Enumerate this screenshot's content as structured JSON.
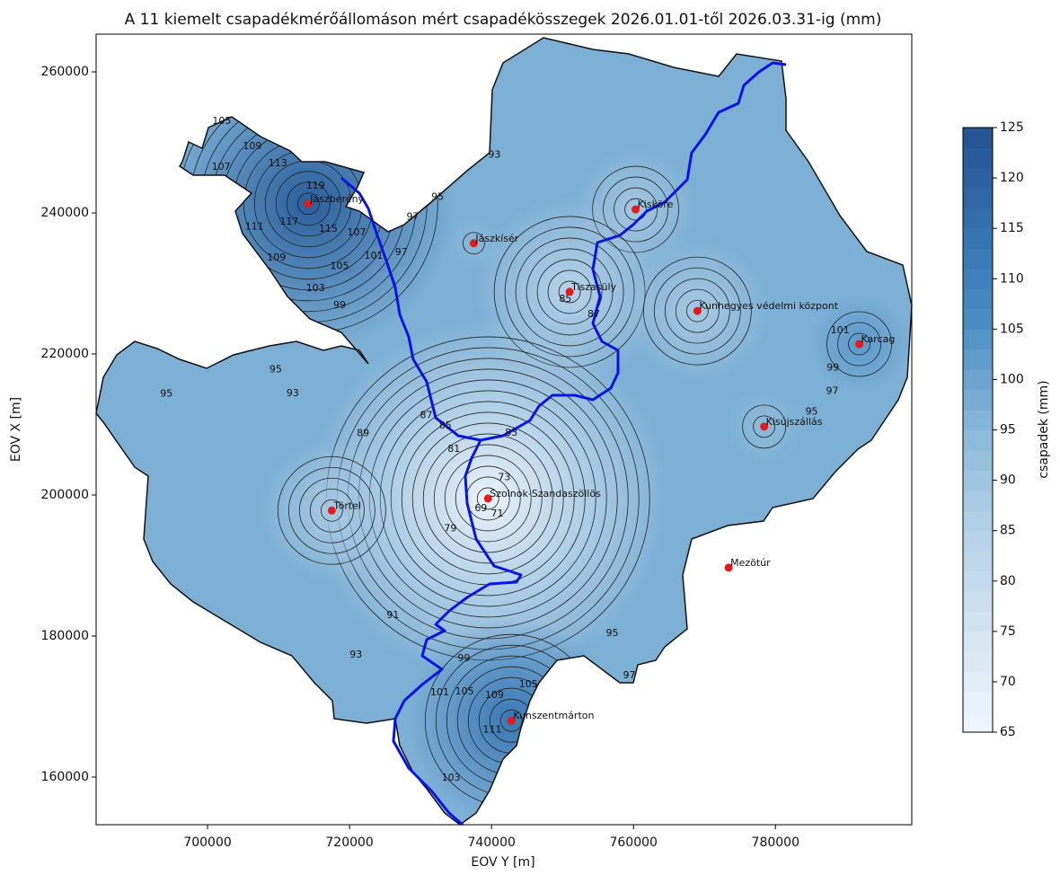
{
  "chart_data": {
    "type": "contour-map",
    "title": "A 11 kiemelt csapadékmérőállomáson mért csapadékösszegek 2026.01.01-től 2026.03.31-ig (mm)",
    "x_label": "EOV Y [m]",
    "y_label": "EOV X [m]",
    "xlim": [
      684300,
      799200
    ],
    "ylim": [
      153250,
      265350
    ],
    "xticks": [
      700000,
      720000,
      740000,
      760000,
      780000
    ],
    "yticks": [
      160000,
      180000,
      200000,
      220000,
      240000,
      260000
    ],
    "colorbar_label": "csapadek (mm)",
    "clim": [
      65,
      125
    ],
    "colorbar_ticks": [
      65,
      70,
      75,
      80,
      85,
      90,
      95,
      100,
      105,
      110,
      115,
      120,
      125
    ],
    "marker_color": "#e41a1c",
    "stations": {
      "names": [
        "Jászberény",
        "Jászkísér",
        "Kisköre",
        "Tiszasüly",
        "Kunhegyes védelmi központ",
        "Karcag",
        "Kisújszállás",
        "Szolnok-Szandaszöllös",
        "Törtel",
        "Mezötúr",
        "Kunszentmárton"
      ],
      "x": [
        714200,
        737500,
        760300,
        751000,
        769000,
        791800,
        778400,
        739500,
        717500,
        773400,
        742800
      ],
      "y": [
        241300,
        235700,
        240500,
        228800,
        226100,
        221400,
        209700,
        199500,
        197800,
        189700,
        168000
      ],
      "values": [
        121,
        95,
        89,
        84,
        88,
        103,
        94,
        67,
        88,
        97,
        113
      ]
    },
    "contour_labels": [
      {
        "value": 105,
        "x": 702000,
        "y": 253000
      },
      {
        "value": 109,
        "x": 706300,
        "y": 249400
      },
      {
        "value": 107,
        "x": 701900,
        "y": 246500
      },
      {
        "value": 113,
        "x": 709900,
        "y": 247000
      },
      {
        "value": 119,
        "x": 715200,
        "y": 243800
      },
      {
        "value": 117,
        "x": 711500,
        "y": 238700
      },
      {
        "value": 111,
        "x": 706600,
        "y": 238000
      },
      {
        "value": 109,
        "x": 709700,
        "y": 233600
      },
      {
        "value": 103,
        "x": 715200,
        "y": 229300
      },
      {
        "value": 105,
        "x": 718600,
        "y": 232400
      },
      {
        "value": 115,
        "x": 717000,
        "y": 237700
      },
      {
        "value": 107,
        "x": 721000,
        "y": 237200
      },
      {
        "value": 101,
        "x": 723400,
        "y": 233900
      },
      {
        "value": 99,
        "x": 718600,
        "y": 226900
      },
      {
        "value": 97,
        "x": 727300,
        "y": 234400
      },
      {
        "value": 97,
        "x": 728900,
        "y": 239400
      },
      {
        "value": 95,
        "x": 732400,
        "y": 242200
      },
      {
        "value": 93,
        "x": 740400,
        "y": 248200
      },
      {
        "value": 95,
        "x": 709600,
        "y": 217800
      },
      {
        "value": 95,
        "x": 694200,
        "y": 214300
      },
      {
        "value": 93,
        "x": 712000,
        "y": 214400
      },
      {
        "value": 89,
        "x": 721900,
        "y": 208700
      },
      {
        "value": 87,
        "x": 730800,
        "y": 211300
      },
      {
        "value": 85,
        "x": 733500,
        "y": 209800
      },
      {
        "value": 81,
        "x": 734700,
        "y": 206500
      },
      {
        "value": 83,
        "x": 742800,
        "y": 208800
      },
      {
        "value": 73,
        "x": 741800,
        "y": 202500
      },
      {
        "value": 69,
        "x": 738500,
        "y": 198100
      },
      {
        "value": 71,
        "x": 740800,
        "y": 197300
      },
      {
        "value": 79,
        "x": 734200,
        "y": 195200
      },
      {
        "value": 87,
        "x": 754400,
        "y": 225600
      },
      {
        "value": 85,
        "x": 750400,
        "y": 227800
      },
      {
        "value": 91,
        "x": 726100,
        "y": 182900
      },
      {
        "value": 95,
        "x": 757000,
        "y": 180400
      },
      {
        "value": 93,
        "x": 720900,
        "y": 177300
      },
      {
        "value": 99,
        "x": 736100,
        "y": 176800
      },
      {
        "value": 101,
        "x": 732700,
        "y": 172000
      },
      {
        "value": 105,
        "x": 736200,
        "y": 172100
      },
      {
        "value": 109,
        "x": 740400,
        "y": 171600
      },
      {
        "value": 105,
        "x": 745200,
        "y": 173100
      },
      {
        "value": 111,
        "x": 740100,
        "y": 166700
      },
      {
        "value": 103,
        "x": 734300,
        "y": 159900
      },
      {
        "value": 97,
        "x": 759400,
        "y": 174400
      },
      {
        "value": 101,
        "x": 789100,
        "y": 223300
      },
      {
        "value": 99,
        "x": 788100,
        "y": 218000
      },
      {
        "value": 97,
        "x": 788000,
        "y": 214700
      },
      {
        "value": 95,
        "x": 785100,
        "y": 211800
      }
    ]
  }
}
